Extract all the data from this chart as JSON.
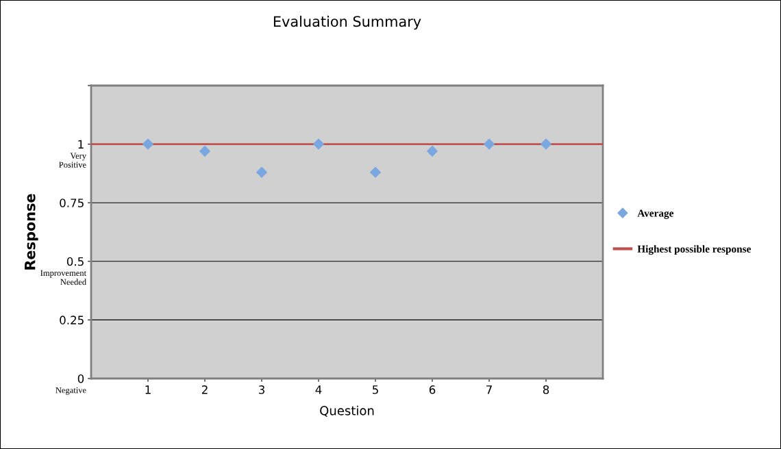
{
  "chart_data": {
    "type": "scatter",
    "title": "Evaluation Summary",
    "xlabel": "Question",
    "ylabel": "Response",
    "x": [
      1,
      2,
      3,
      4,
      5,
      6,
      7,
      8
    ],
    "series": [
      {
        "name": "Average",
        "color": "#7ba7e0",
        "marker": "diamond",
        "values": [
          1.0,
          0.97,
          0.88,
          1.0,
          0.88,
          0.97,
          1.0,
          1.0
        ]
      },
      {
        "name": "Highest possible response",
        "type": "line",
        "color": "#c0504d",
        "x": [
          0,
          9
        ],
        "values": [
          1,
          1
        ],
        "marker": "none",
        "line_style": "solid"
      }
    ],
    "xlim": [
      0,
      9
    ],
    "xticks": [
      1,
      2,
      3,
      4,
      5,
      6,
      7,
      8
    ],
    "ylim": [
      0,
      1.25
    ],
    "yticks": [
      0,
      0.25,
      0.5,
      0.75,
      1,
      {
        "value": 1.25,
        "label": null
      }
    ],
    "annotations": [
      "Very\nPositive",
      "Improvement\nNeeded",
      "Negative"
    ],
    "grid": "y",
    "legend": "right"
  }
}
